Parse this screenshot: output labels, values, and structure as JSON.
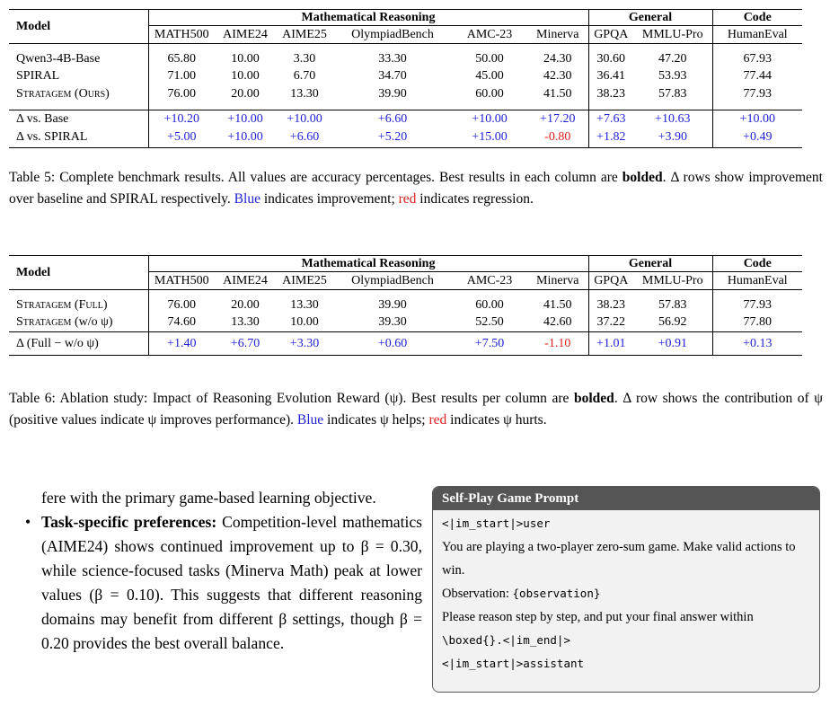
{
  "table5": {
    "model_header": "Model",
    "groups": [
      "Mathematical Reasoning",
      "General",
      "Code"
    ],
    "columns": [
      "MATH500",
      "AIME24",
      "AIME25",
      "OlympiadBench",
      "AMC-23",
      "Minerva",
      "GPQA",
      "MMLU-Pro",
      "HumanEval"
    ],
    "rows": [
      {
        "model": "Qwen3-4B-Base",
        "values": [
          "65.80",
          "10.00",
          "3.30",
          "33.30",
          "50.00",
          "24.30",
          "30.60",
          "47.20",
          "67.93"
        ]
      },
      {
        "model": "SPIRAL",
        "values": [
          "71.00",
          "10.00",
          "6.70",
          "34.70",
          "45.00",
          "42.30",
          "36.41",
          "53.93",
          "77.44"
        ]
      },
      {
        "model": "Stratagem (Ours)",
        "values": [
          "76.00",
          "20.00",
          "13.30",
          "39.90",
          "60.00",
          "41.50",
          "38.23",
          "57.83",
          "77.93"
        ]
      }
    ],
    "delta_rows": [
      {
        "label": "Δ vs. Base",
        "values": [
          "+10.20",
          "+10.00",
          "+10.00",
          "+6.60",
          "+10.00",
          "+17.20",
          "+7.63",
          "+10.63",
          "+10.00"
        ]
      },
      {
        "label": "Δ vs. SPIRAL",
        "values": [
          "+5.00",
          "+10.00",
          "+6.60",
          "+5.20",
          "+15.00",
          "-0.80",
          "+1.82",
          "+3.90",
          "+0.49"
        ]
      }
    ]
  },
  "caption5": {
    "lead": "Table 5: Complete benchmark results. All values are accuracy percentages. Best results in each column are ",
    "bolded": "bolded",
    "after_bold": ". Δ rows show improvement over baseline and SPIRAL respectively. ",
    "blue": "Blue",
    "mid": " indicates improvement; ",
    "red": "red",
    "end": " indicates regression."
  },
  "table6": {
    "model_header": "Model",
    "groups": [
      "Mathematical Reasoning",
      "General",
      "Code"
    ],
    "columns": [
      "MATH500",
      "AIME24",
      "AIME25",
      "OlympiadBench",
      "AMC-23",
      "Minerva",
      "GPQA",
      "MMLU-Pro",
      "HumanEval"
    ],
    "rows": [
      {
        "model": "Stratagem (Full)",
        "values": [
          "76.00",
          "20.00",
          "13.30",
          "39.90",
          "60.00",
          "41.50",
          "38.23",
          "57.83",
          "77.93"
        ]
      },
      {
        "model_main": "Stratagem",
        "model_suffix": " (w/o ψ)",
        "values": [
          "74.60",
          "13.30",
          "10.00",
          "39.30",
          "52.50",
          "42.60",
          "37.22",
          "56.92",
          "77.80"
        ]
      }
    ],
    "delta_row": {
      "label": "Δ (Full − w/o ψ)",
      "values": [
        "+1.40",
        "+6.70",
        "+3.30",
        "+0.60",
        "+7.50",
        "-1.10",
        "+1.01",
        "+0.91",
        "+0.13"
      ]
    }
  },
  "caption6": {
    "lead": "Table 6: Ablation study: Impact of Reasoning Evolution Reward (ψ). Best results per column are ",
    "bolded": "bolded",
    "after_bold": ". Δ row shows the contribution of ψ (positive values indicate ψ improves performance). ",
    "blue": "Blue",
    "mid": " indicates ψ helps; ",
    "red": "red",
    "end": " indicates ψ hurts."
  },
  "body": {
    "continuation": "fere with the primary game-based learning objective.",
    "bullet_symbol": "•",
    "bullet_title": "Task-specific preferences:",
    "bullet_text": " Competition-level mathematics (AIME24) shows continued improvement up to β = 0.30, while science-focused tasks (Minerva Math) peak at lower values (β = 0.10). This suggests that different reasoning domains may benefit from different β settings, though β = 0.20 provides the best overall balance."
  },
  "prompt_box": {
    "title": "Self-Play Game Prompt",
    "line1": "<|im_start|>user",
    "line2": "You are playing a two-player zero-sum game. Make valid actions to win.",
    "line3_label": "Observation: ",
    "line3_code": "{observation}",
    "line4": "Please reason step by step, and put your final answer within ",
    "line4_code": "\\boxed{}.<|im_end|>",
    "line5": "<|im_start|>assistant"
  }
}
